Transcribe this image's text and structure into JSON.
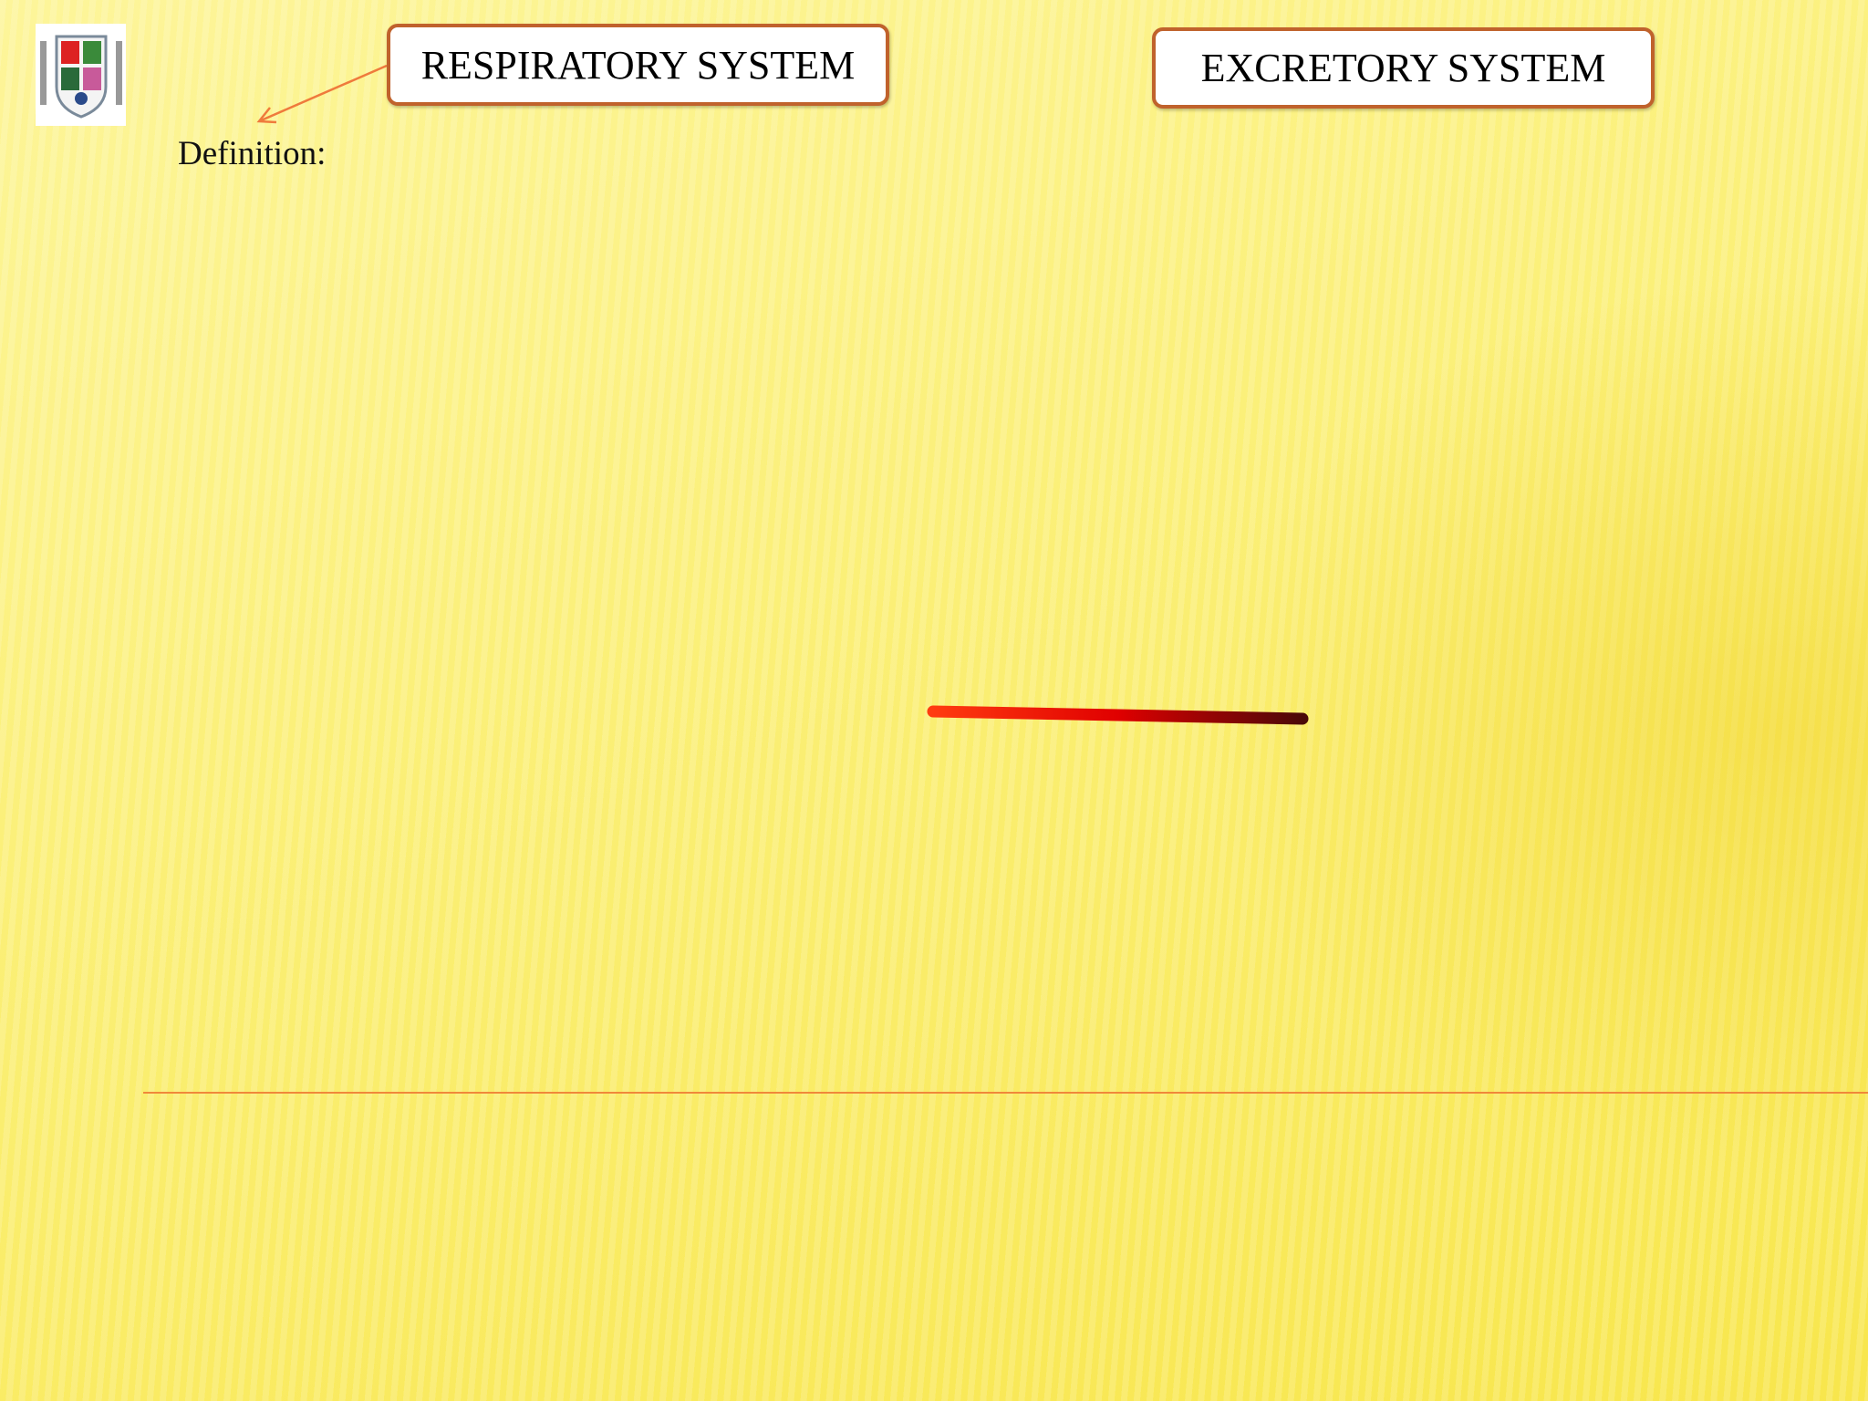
{
  "slide": {
    "left_title": "RESPIRATORY SYSTEM",
    "right_title": "EXCRETORY SYSTEM",
    "definition_label": "Definition:"
  }
}
